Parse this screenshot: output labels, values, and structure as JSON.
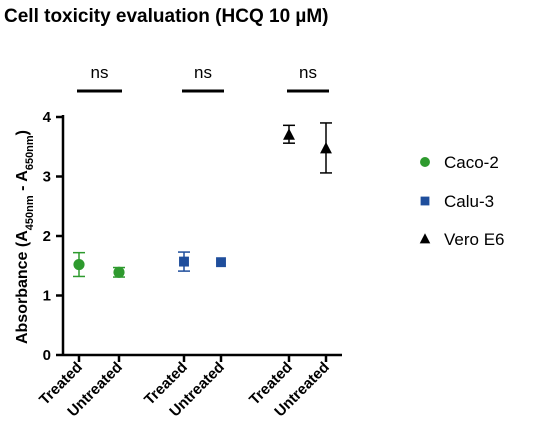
{
  "chart_data": {
    "type": "scatter",
    "title": "Cell toxicity evaluation (HCQ 10 µM)",
    "ylabel": {
      "main": "Absorbance (A",
      "sub1": "450nm",
      "mid": " - A",
      "sub2": "650nm",
      "end": ")"
    },
    "ylim": [
      0,
      4
    ],
    "yticks": [
      0,
      1,
      2,
      3,
      4
    ],
    "categories": [
      "Treated",
      "Untreated",
      "Treated",
      "Untreated",
      "Treated",
      "Untreated"
    ],
    "significance": [
      "ns",
      "ns",
      "ns"
    ],
    "series": [
      {
        "name": "Caco-2",
        "color": "#2e9a2e",
        "marker": "circle",
        "points": [
          {
            "category": 0,
            "mean": 1.52,
            "lower": 1.32,
            "upper": 1.72
          },
          {
            "category": 1,
            "mean": 1.39,
            "lower": 1.31,
            "upper": 1.47
          }
        ]
      },
      {
        "name": "Calu-3",
        "color": "#1f4e9c",
        "marker": "square",
        "points": [
          {
            "category": 2,
            "mean": 1.57,
            "lower": 1.41,
            "upper": 1.73
          },
          {
            "category": 3,
            "mean": 1.56,
            "lower": 1.56,
            "upper": 1.56
          }
        ]
      },
      {
        "name": "Vero E6",
        "color": "#000000",
        "marker": "triangle",
        "points": [
          {
            "category": 4,
            "mean": 3.7,
            "lower": 3.56,
            "upper": 3.86
          },
          {
            "category": 5,
            "mean": 3.47,
            "lower": 3.06,
            "upper": 3.9
          }
        ]
      }
    ]
  }
}
